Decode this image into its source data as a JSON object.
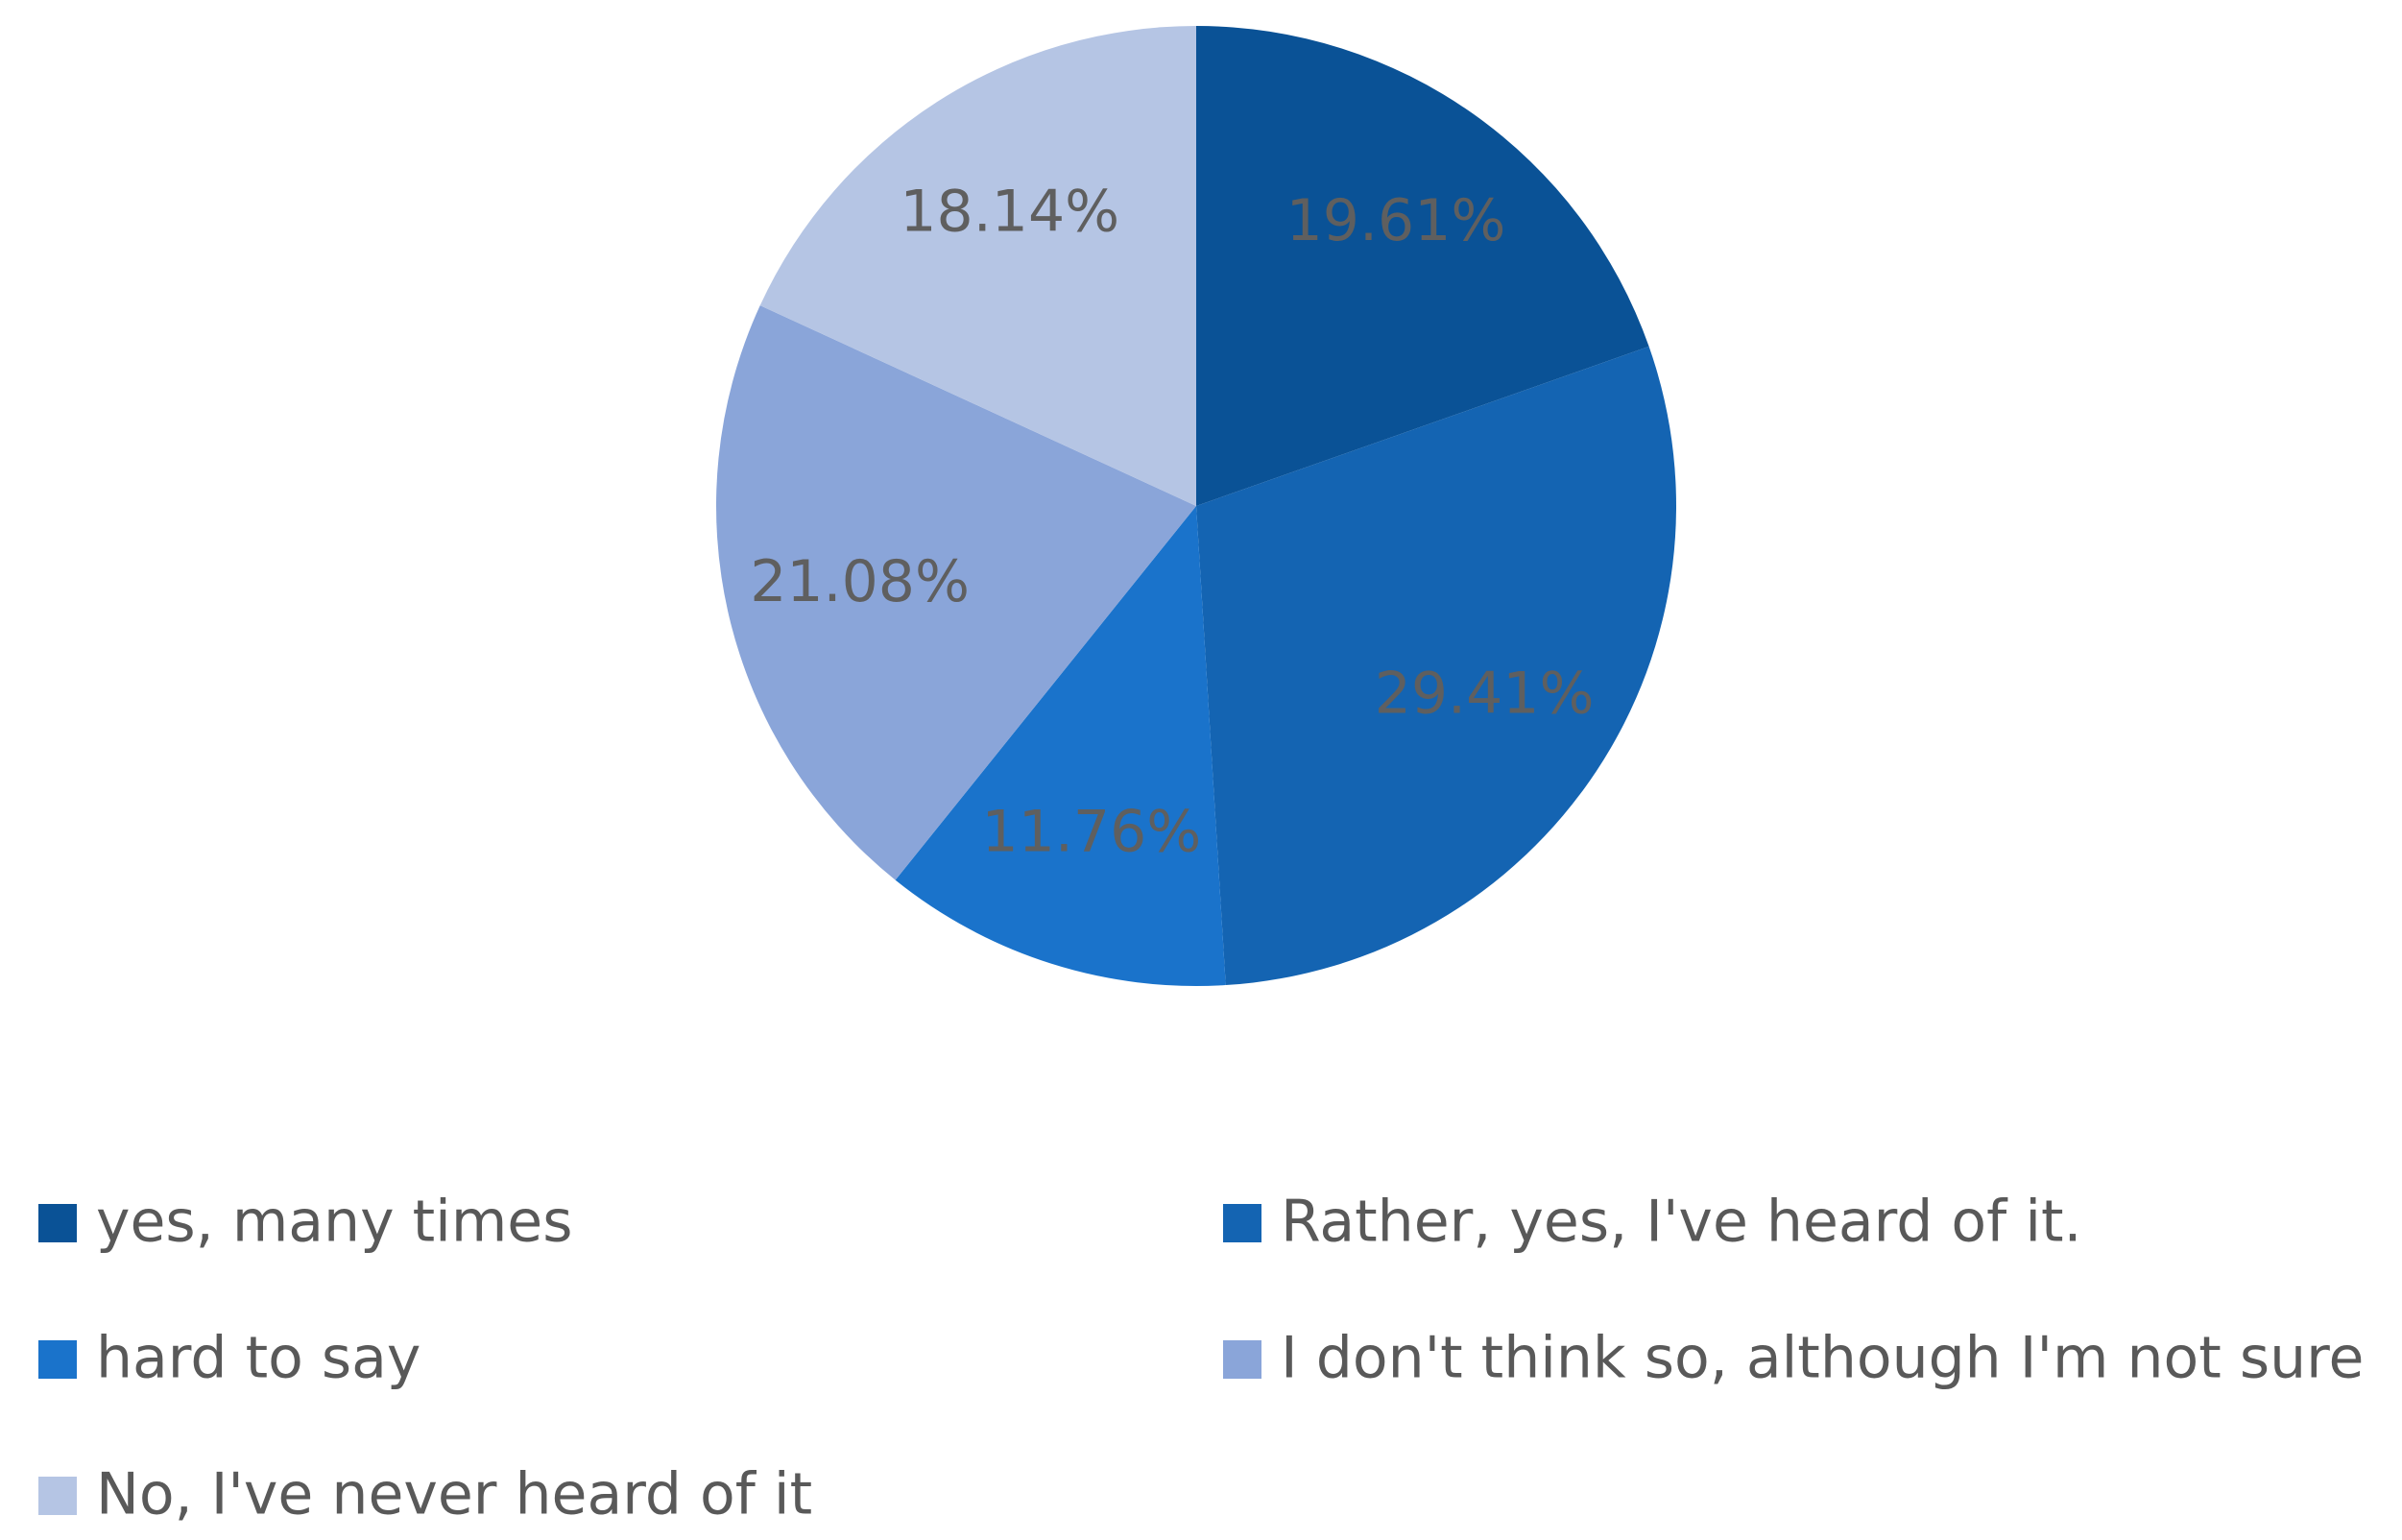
{
  "chart_data": {
    "type": "pie",
    "categories": [
      "yes, many times",
      "Rather, yes, I've heard of it.",
      "hard to say",
      "I don't think so, although I'm not sure",
      "No, I've never heard of it"
    ],
    "values": [
      19.61,
      29.41,
      11.76,
      21.08,
      18.14
    ],
    "value_labels": [
      "19.61%",
      "29.41%",
      "11.76%",
      "21.08%",
      "18.14%"
    ],
    "colors": [
      "#0a5296",
      "#1464b2",
      "#1a73cb",
      "#8aa5d9",
      "#b5c5e4"
    ],
    "legend": "bottom"
  }
}
